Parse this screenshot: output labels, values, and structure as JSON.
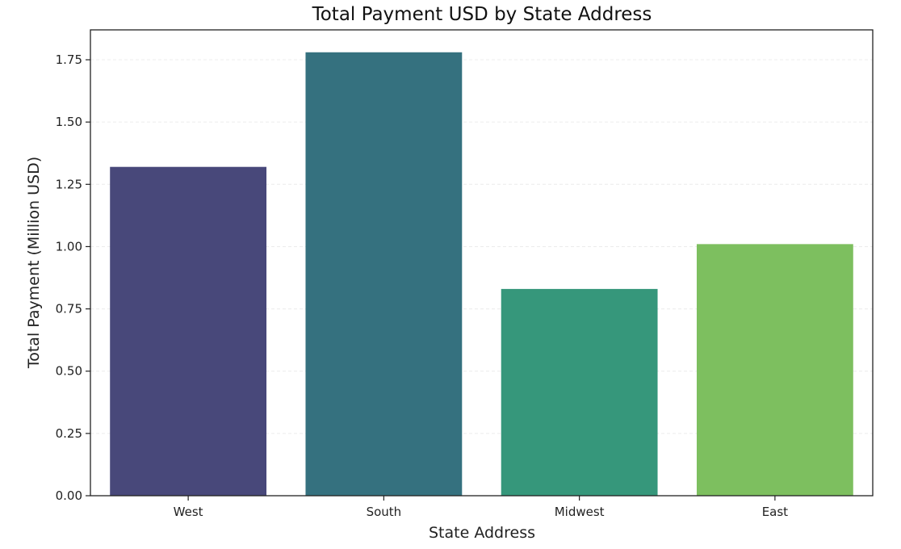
{
  "chart_data": {
    "type": "bar",
    "title": "Total Payment USD by State Address",
    "xlabel": "State Address",
    "ylabel": "Total Payment (Million USD)",
    "categories": [
      "West",
      "South",
      "Midwest",
      "East"
    ],
    "values": [
      1.32,
      1.78,
      0.83,
      1.01
    ],
    "colors": [
      "#48487a",
      "#35717f",
      "#36977b",
      "#7dbf5f"
    ],
    "ylim": [
      0,
      1.87
    ],
    "yticks": [
      0.0,
      0.25,
      0.5,
      0.75,
      1.0,
      1.25,
      1.5,
      1.75
    ],
    "ytick_labels": [
      "0.00",
      "0.25",
      "0.50",
      "0.75",
      "1.00",
      "1.25",
      "1.50",
      "1.75"
    ],
    "grid": "horizontal, faint",
    "legend": "none"
  }
}
